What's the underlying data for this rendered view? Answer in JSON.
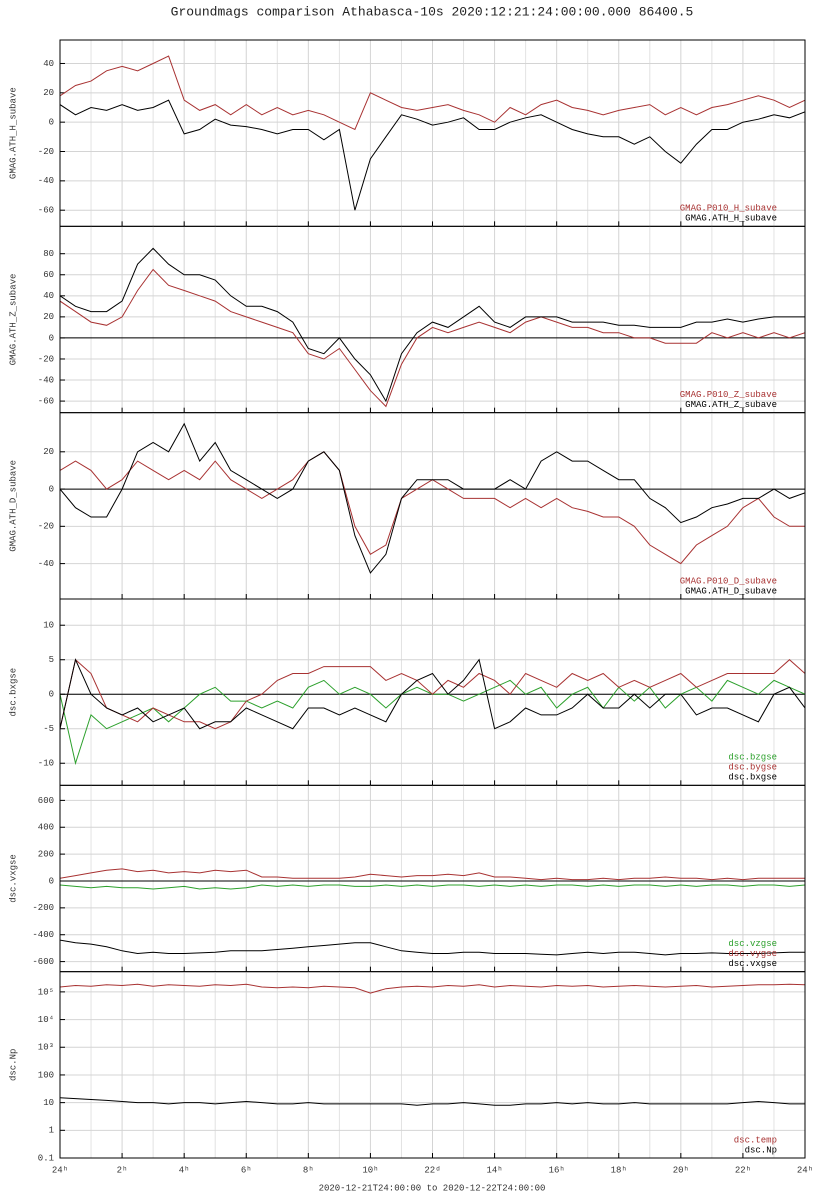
{
  "title": "Groundmags comparison Athabasca-10s 2020:12:21:24:00:00.000 86400.5",
  "time_range": "2020-12-21T24:00:00 to 2020-12-22T24:00:00",
  "x": [
    0,
    0.5,
    1,
    1.5,
    2,
    2.5,
    3,
    3.5,
    4,
    4.5,
    5,
    5.5,
    6,
    6.5,
    7,
    7.5,
    8,
    8.5,
    9,
    9.5,
    10,
    10.5,
    11,
    11.5,
    12,
    12.5,
    13,
    13.5,
    14,
    14.5,
    15,
    15.5,
    16,
    16.5,
    17,
    17.5,
    18,
    18.5,
    19,
    19.5,
    20,
    20.5,
    21,
    21.5,
    22,
    22.5,
    23,
    23.5,
    24
  ],
  "xlim": [
    0,
    24
  ],
  "xticks": [
    {
      "value": 0,
      "label": "24ʰ"
    },
    {
      "value": 2,
      "label": "2ʰ"
    },
    {
      "value": 4,
      "label": "4ʰ"
    },
    {
      "value": 6,
      "label": "6ʰ"
    },
    {
      "value": 8,
      "label": "8ʰ"
    },
    {
      "value": 10,
      "label": "10ʰ"
    },
    {
      "value": 12,
      "label": "22ᵈ"
    },
    {
      "value": 14,
      "label": "14ʰ"
    },
    {
      "value": 16,
      "label": "16ʰ"
    },
    {
      "value": 18,
      "label": "18ʰ"
    },
    {
      "value": 20,
      "label": "20ʰ"
    },
    {
      "value": 22,
      "label": "22ʰ"
    },
    {
      "value": 24,
      "label": "24ʰ"
    }
  ],
  "xminorticks": [
    1,
    3,
    5,
    7,
    9,
    11,
    13,
    15,
    17,
    19,
    21,
    23
  ],
  "chart_data": [
    {
      "type": "line",
      "ylabel": "GMAG.ATH_H_subave",
      "ylim": [
        -71,
        56
      ],
      "yticks": [
        -60,
        -40,
        -20,
        0,
        20,
        40
      ],
      "grid": true,
      "zero_line": false,
      "legend": "lower right",
      "series": [
        {
          "name": "GMAG.P010_H_subave",
          "color": "#a83232",
          "values": [
            18,
            25,
            28,
            35,
            38,
            35,
            40,
            45,
            15,
            8,
            12,
            5,
            12,
            5,
            10,
            5,
            8,
            5,
            0,
            -5,
            20,
            15,
            10,
            8,
            10,
            12,
            8,
            5,
            0,
            10,
            5,
            12,
            15,
            10,
            8,
            5,
            8,
            10,
            12,
            5,
            10,
            5,
            10,
            12,
            15,
            18,
            15,
            10,
            15
          ]
        },
        {
          "name": "GMAG.ATH_H_subave",
          "color": "#000000",
          "values": [
            12,
            5,
            10,
            8,
            12,
            8,
            10,
            15,
            -8,
            -5,
            2,
            -2,
            -3,
            -5,
            -8,
            -5,
            -5,
            -12,
            -5,
            -60,
            -25,
            -10,
            5,
            2,
            -2,
            0,
            3,
            -5,
            -5,
            0,
            3,
            5,
            0,
            -5,
            -8,
            -10,
            -10,
            -15,
            -10,
            -20,
            -28,
            -15,
            -5,
            -5,
            0,
            2,
            5,
            3,
            7
          ]
        }
      ]
    },
    {
      "type": "line",
      "ylabel": "GMAG.ATH_Z_subave",
      "ylim": [
        -71,
        106
      ],
      "yticks": [
        -60,
        -40,
        -20,
        0,
        20,
        40,
        60,
        80
      ],
      "grid": true,
      "zero_line": true,
      "legend": "lower right",
      "series": [
        {
          "name": "GMAG.P010_Z_subave",
          "color": "#a83232",
          "values": [
            35,
            25,
            15,
            12,
            20,
            45,
            65,
            50,
            45,
            40,
            35,
            25,
            20,
            15,
            10,
            5,
            -15,
            -20,
            -10,
            -30,
            -50,
            -65,
            -25,
            0,
            10,
            5,
            10,
            15,
            10,
            5,
            15,
            20,
            15,
            10,
            10,
            5,
            5,
            0,
            0,
            -5,
            -5,
            -5,
            5,
            0,
            5,
            0,
            5,
            0,
            5
          ]
        },
        {
          "name": "GMAG.ATH_Z_subave",
          "color": "#000000",
          "values": [
            40,
            30,
            25,
            25,
            35,
            70,
            85,
            70,
            60,
            60,
            55,
            40,
            30,
            30,
            25,
            15,
            -10,
            -15,
            0,
            -20,
            -35,
            -60,
            -15,
            5,
            15,
            10,
            20,
            30,
            15,
            10,
            20,
            20,
            20,
            15,
            15,
            15,
            12,
            12,
            10,
            10,
            10,
            15,
            15,
            18,
            15,
            18,
            20,
            20,
            20
          ]
        }
      ]
    },
    {
      "type": "line",
      "ylabel": "GMAG.ATH_D_subave",
      "ylim": [
        -59,
        41
      ],
      "yticks": [
        -40,
        -20,
        0,
        20
      ],
      "grid": true,
      "zero_line": true,
      "legend": "lower right",
      "series": [
        {
          "name": "GMAG.P010_D_subave",
          "color": "#a83232",
          "values": [
            10,
            15,
            10,
            0,
            5,
            15,
            10,
            5,
            10,
            5,
            15,
            5,
            0,
            -5,
            0,
            5,
            15,
            20,
            10,
            -20,
            -35,
            -30,
            -5,
            0,
            5,
            0,
            -5,
            -5,
            -5,
            -10,
            -5,
            -10,
            -5,
            -10,
            -12,
            -15,
            -15,
            -20,
            -30,
            -35,
            -40,
            -30,
            -25,
            -20,
            -10,
            -5,
            -15,
            -20,
            -20
          ]
        },
        {
          "name": "GMAG.ATH_D_subave",
          "color": "#000000",
          "values": [
            0,
            -10,
            -15,
            -15,
            0,
            20,
            25,
            20,
            35,
            15,
            25,
            10,
            5,
            0,
            -5,
            0,
            15,
            20,
            10,
            -25,
            -45,
            -35,
            -5,
            5,
            5,
            5,
            0,
            0,
            0,
            5,
            0,
            15,
            20,
            15,
            15,
            10,
            5,
            5,
            -5,
            -10,
            -18,
            -15,
            -10,
            -8,
            -5,
            -5,
            0,
            -5,
            -2
          ]
        }
      ]
    },
    {
      "type": "line",
      "ylabel": "dsc.bxgse",
      "ylim": [
        -13.2,
        13.8
      ],
      "yticks": [
        -10,
        -5,
        0,
        5,
        10
      ],
      "grid": true,
      "zero_line": true,
      "legend": "lower right",
      "series": [
        {
          "name": "dsc.bzgse",
          "color": "#2ca02c",
          "values": [
            0,
            -10,
            -3,
            -5,
            -4,
            -3,
            -2,
            -4,
            -2,
            0,
            1,
            -1,
            -1,
            -2,
            -1,
            -2,
            1,
            2,
            0,
            1,
            0,
            -2,
            0,
            1,
            0,
            0,
            -1,
            0,
            1,
            2,
            0,
            1,
            -2,
            0,
            1,
            -2,
            1,
            -1,
            1,
            -2,
            0,
            1,
            -1,
            2,
            1,
            0,
            2,
            1,
            0
          ]
        },
        {
          "name": "dsc.bygse",
          "color": "#a83232",
          "values": [
            -5,
            5,
            3,
            -2,
            -3,
            -4,
            -2,
            -3,
            -4,
            -4,
            -5,
            -4,
            -1,
            0,
            2,
            3,
            3,
            4,
            4,
            4,
            4,
            2,
            3,
            2,
            0,
            2,
            1,
            3,
            2,
            0,
            3,
            2,
            1,
            3,
            2,
            3,
            1,
            2,
            1,
            2,
            3,
            1,
            2,
            3,
            3,
            3,
            3,
            5,
            3
          ]
        },
        {
          "name": "dsc.bxgse",
          "color": "#000000",
          "values": [
            -5,
            5,
            0,
            -2,
            -3,
            -2,
            -4,
            -3,
            -2,
            -5,
            -4,
            -4,
            -2,
            -3,
            -4,
            -5,
            -2,
            -2,
            -3,
            -2,
            -3,
            -4,
            0,
            2,
            3,
            0,
            2,
            5,
            -5,
            -4,
            -2,
            -3,
            -3,
            -2,
            0,
            -2,
            -2,
            0,
            -2,
            0,
            0,
            -3,
            -2,
            -2,
            -3,
            -4,
            0,
            1,
            -2
          ]
        }
      ]
    },
    {
      "type": "line",
      "ylabel": "dsc.vxgse",
      "ylim": [
        -675,
        712
      ],
      "yticks": [
        -600,
        -400,
        -200,
        0,
        200,
        400,
        600
      ],
      "grid": true,
      "zero_line": true,
      "legend": "lower right",
      "series": [
        {
          "name": "dsc.vzgse",
          "color": "#2ca02c",
          "values": [
            -30,
            -40,
            -50,
            -40,
            -50,
            -50,
            -60,
            -50,
            -40,
            -60,
            -50,
            -60,
            -50,
            -30,
            -40,
            -30,
            -40,
            -30,
            -30,
            -40,
            -40,
            -30,
            -40,
            -30,
            -40,
            -30,
            -30,
            -40,
            -30,
            -40,
            -30,
            -40,
            -30,
            -30,
            -40,
            -30,
            -40,
            -30,
            -30,
            -40,
            -30,
            -40,
            -30,
            -30,
            -40,
            -30,
            -30,
            -40,
            -30
          ]
        },
        {
          "name": "dsc.vygse",
          "color": "#a83232",
          "values": [
            20,
            40,
            60,
            80,
            90,
            70,
            80,
            60,
            70,
            60,
            80,
            70,
            80,
            30,
            30,
            20,
            20,
            20,
            20,
            30,
            50,
            40,
            30,
            40,
            40,
            50,
            40,
            60,
            30,
            30,
            20,
            10,
            20,
            10,
            10,
            20,
            10,
            20,
            20,
            30,
            20,
            20,
            10,
            20,
            10,
            20,
            20,
            20,
            20
          ]
        },
        {
          "name": "dsc.vxgse",
          "color": "#000000",
          "values": [
            -440,
            -460,
            -470,
            -490,
            -520,
            -540,
            -530,
            -540,
            -540,
            -535,
            -530,
            -520,
            -520,
            -520,
            -510,
            -500,
            -490,
            -480,
            -470,
            -460,
            -460,
            -490,
            -520,
            -530,
            -540,
            -540,
            -530,
            -530,
            -540,
            -540,
            -540,
            -545,
            -550,
            -540,
            -530,
            -540,
            -530,
            -530,
            -540,
            -550,
            -540,
            -540,
            -535,
            -540,
            -540,
            -540,
            -535,
            -530,
            -530
          ]
        }
      ]
    },
    {
      "type": "line",
      "ylabel": "dsc.Np",
      "log": true,
      "ylim": [
        0.1,
        537000
      ],
      "yticks": [
        0.1,
        1,
        10,
        100,
        {
          "value": 1000,
          "label": "10³"
        },
        {
          "value": 10000,
          "label": "10⁴"
        },
        {
          "value": 100000,
          "label": "10⁵"
        }
      ],
      "grid": true,
      "zero_line": false,
      "legend": "lower right",
      "series": [
        {
          "name": "dsc.temp",
          "color": "#a83232",
          "values": [
            150000,
            170000,
            160000,
            180000,
            170000,
            190000,
            160000,
            180000,
            170000,
            160000,
            180000,
            170000,
            190000,
            150000,
            140000,
            150000,
            140000,
            160000,
            150000,
            140000,
            90000,
            130000,
            150000,
            160000,
            150000,
            170000,
            160000,
            180000,
            150000,
            170000,
            160000,
            150000,
            170000,
            160000,
            170000,
            150000,
            160000,
            170000,
            160000,
            150000,
            160000,
            170000,
            150000,
            160000,
            170000,
            180000,
            180000,
            190000,
            180000
          ]
        },
        {
          "name": "dsc.Np",
          "color": "#000000",
          "values": [
            15,
            14,
            13,
            12,
            11,
            10,
            10,
            9,
            10,
            10,
            9,
            10,
            11,
            10,
            9,
            9,
            10,
            9,
            9,
            9,
            9,
            9,
            9,
            8,
            9,
            9,
            10,
            9,
            8,
            8,
            9,
            9,
            10,
            9,
            10,
            9,
            9,
            10,
            9,
            9,
            9,
            9,
            9,
            9,
            10,
            11,
            10,
            9,
            9
          ]
        }
      ]
    }
  ]
}
